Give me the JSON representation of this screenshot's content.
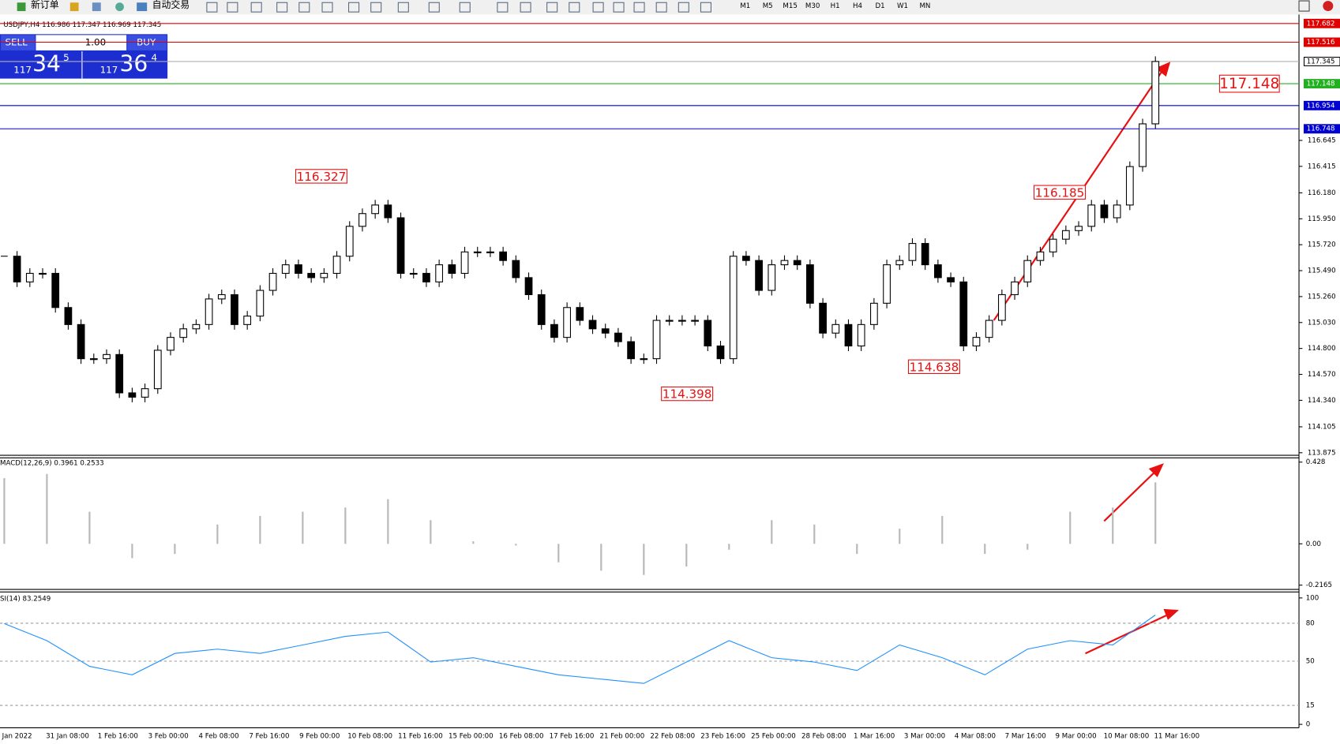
{
  "toolbar": {
    "buttons": [
      "新订单",
      "自动交易"
    ],
    "timeframes": [
      "M1",
      "M5",
      "M15",
      "M30",
      "H1",
      "H4",
      "D1",
      "W1",
      "MN"
    ]
  },
  "trade_panel": {
    "sell": "SELL",
    "volume": "1.00",
    "buy": "BUY",
    "sell_price": {
      "big": "117",
      "main": "34",
      "small": "5"
    },
    "buy_price": {
      "big": "117",
      "main": "36",
      "small": "4"
    }
  },
  "chart": {
    "header": "USDJPY,H4  116.986 117.347 116.969 117.345",
    "ylim": [
      113.86,
      117.754
    ],
    "yticks": [
      116.645,
      116.415,
      {
        "value": 116.18,
        "label": "116.180"
      },
      {
        "value": 115.95,
        "label": "115.950"
      },
      {
        "value": 115.72,
        "label": "115.720"
      },
      {
        "value": 115.49,
        "label": "115.490"
      },
      {
        "value": 115.26,
        "label": "115.260"
      },
      {
        "value": 115.03,
        "label": "115.030"
      },
      {
        "value": 114.8,
        "label": "114.800"
      },
      {
        "value": 114.57,
        "label": "114.570"
      },
      {
        "value": 114.34,
        "label": "114.340"
      },
      114.105,
      113.875
    ],
    "levels": [
      {
        "value": 117.682,
        "color": "#e00000"
      },
      {
        "value": 117.516,
        "color": "#e00000"
      },
      {
        "value": 117.345,
        "color": "#b0b0b0"
      },
      {
        "value": 117.148,
        "color": "#20b020"
      },
      {
        "value": 116.954,
        "color": "#0000d0"
      },
      {
        "value": 116.748,
        "color": "#0000d0"
      }
    ],
    "close": [
      115.618,
      115.39,
      115.466,
      115.466,
      115.163,
      115.012,
      114.709,
      114.709,
      114.746,
      114.406,
      114.368,
      114.443,
      114.784,
      114.898,
      114.974,
      115.012,
      115.239,
      115.277,
      115.012,
      115.087,
      115.315,
      115.466,
      115.542,
      115.466,
      115.428,
      115.466,
      115.618,
      115.883,
      115.996,
      116.072,
      115.959,
      115.466,
      115.466,
      115.39,
      115.542,
      115.466,
      115.656,
      115.656,
      115.656,
      115.58,
      115.428,
      115.277,
      115.012,
      114.898,
      115.163,
      115.049,
      114.974,
      114.936,
      114.86,
      114.709,
      114.709,
      115.049,
      115.049,
      115.049,
      115.049,
      114.822,
      114.709,
      115.618,
      115.58,
      115.315,
      115.542,
      115.58,
      115.542,
      115.201,
      114.936,
      115.012,
      114.822,
      115.012,
      115.201,
      115.542,
      115.58,
      115.731,
      115.542,
      115.428,
      115.39,
      114.822,
      114.898,
      115.049,
      115.277,
      115.39,
      115.58,
      115.656,
      115.769,
      115.845,
      115.883,
      116.072,
      115.959,
      116.072,
      116.413,
      116.792,
      117.345
    ],
    "annotations": [
      116.327,
      114.398,
      114.638,
      116.185,
      117.148
    ],
    "time_labels": [
      "Jan 2022",
      "31 Jan 08:00",
      "1 Feb 16:00",
      "3 Feb 00:00",
      "4 Feb 08:00",
      "7 Feb 16:00",
      "9 Feb 00:00",
      "10 Feb 08:00",
      "11 Feb 16:00",
      "15 Feb 00:00",
      "16 Feb 08:00",
      "17 Feb 16:00",
      "21 Feb 00:00",
      "22 Feb 08:00",
      "23 Feb 16:00",
      "25 Feb 00:00",
      "28 Feb 08:00",
      "1 Mar 16:00",
      "3 Mar 00:00",
      "4 Mar 08:00",
      "7 Mar 16:00",
      "9 Mar 00:00",
      "10 Mar 08:00",
      "11 Mar 16:00"
    ]
  },
  "macd": {
    "label": "MACD(12,26,9) 0.3961 0.2533",
    "ylim": [
      -0.2165,
      0.428
    ],
    "yticks": [
      0.428,
      {
        "value": 0,
        "label": "0.00"
      },
      -0.2165
    ],
    "values": [
      0.344,
      0.366,
      0.168,
      -0.075,
      -0.053,
      0.101,
      0.146,
      0.168,
      0.19,
      0.234,
      0.124,
      0.013,
      -0.009,
      -0.097,
      -0.141,
      -0.163,
      -0.119,
      -0.031,
      0.124,
      0.101,
      -0.053,
      0.079,
      0.146,
      -0.053,
      -0.031,
      0.168,
      0.19,
      0.322
    ]
  },
  "rsi": {
    "label": "SI(14) 83.2549",
    "ylim": [
      0,
      100
    ],
    "yticks": [
      100,
      80,
      50,
      15,
      0
    ],
    "values": [
      79.7,
      66.2,
      45.9,
      39.2,
      56.1,
      59.5,
      56.1,
      62.8,
      69.6,
      73.0,
      49.3,
      52.7,
      45.9,
      39.2,
      35.8,
      32.4,
      49.3,
      66.2,
      52.7,
      49.3,
      42.6,
      62.8,
      52.7,
      39.2,
      59.5,
      66.2,
      62.8,
      86.5
    ]
  }
}
